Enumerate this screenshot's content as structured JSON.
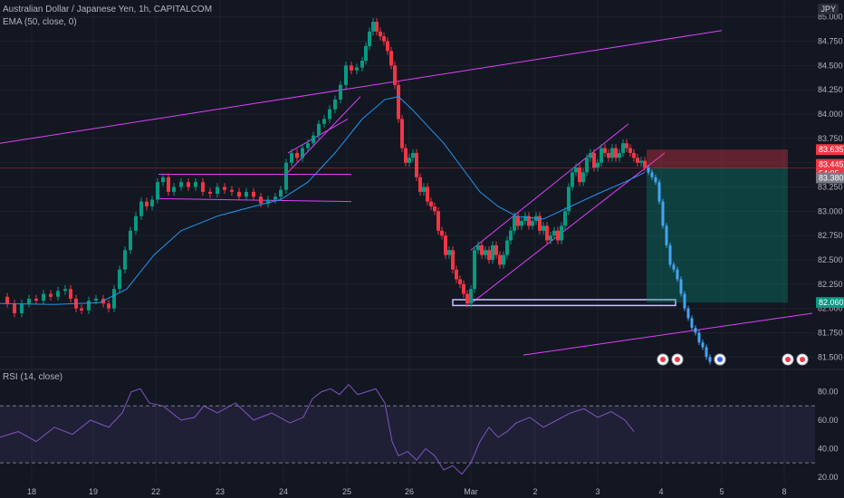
{
  "header": {
    "symbol_line": "Australian Dollar / Japanese Yen, 1h, CAPITALCOM",
    "ema_label": "EMA (50, close, 0)",
    "currency": "JPY"
  },
  "rsi": {
    "label": "RSI (14, close)"
  },
  "chart_data": {
    "type": "candlestick",
    "y_axis": {
      "ticks": [
        "85.000",
        "84.750",
        "84.500",
        "84.250",
        "84.000",
        "83.750",
        "83.500",
        "83.250",
        "83.000",
        "82.750",
        "82.500",
        "82.250",
        "82.000",
        "81.750",
        "81.500"
      ],
      "range": [
        81.4,
        85.1
      ]
    },
    "x_axis": {
      "ticks": [
        "18",
        "19",
        "22",
        "23",
        "24",
        "25",
        "26",
        "Mar",
        "2",
        "3",
        "4",
        "5",
        "8"
      ]
    },
    "price_markers": [
      {
        "label": "83.635",
        "color": "#f23645"
      },
      {
        "label": "83.445",
        "color": "#f23645"
      },
      {
        "label": "54:05",
        "color": "#f23645"
      },
      {
        "label": "83.380",
        "color": "#787b86"
      },
      {
        "label": "82.060",
        "color": "#089981"
      }
    ],
    "rsi_axis": {
      "ticks": [
        "80.00",
        "60.00",
        "40.00",
        "20.00"
      ],
      "range": [
        18,
        88
      ],
      "bands": [
        70,
        30
      ]
    },
    "price_path": [
      [
        0,
        82.12
      ],
      [
        8,
        82.05
      ],
      [
        16,
        81.95
      ],
      [
        24,
        82.05
      ],
      [
        32,
        82.1
      ],
      [
        40,
        82.08
      ],
      [
        48,
        82.15
      ],
      [
        56,
        82.12
      ],
      [
        64,
        82.18
      ],
      [
        72,
        82.2
      ],
      [
        78,
        82.1
      ],
      [
        84,
        82.0
      ],
      [
        90,
        81.98
      ],
      [
        98,
        82.08
      ],
      [
        106,
        82.1
      ],
      [
        114,
        82.05
      ],
      [
        120,
        82.0
      ],
      [
        126,
        82.2
      ],
      [
        132,
        82.4
      ],
      [
        138,
        82.6
      ],
      [
        144,
        82.8
      ],
      [
        150,
        82.95
      ],
      [
        156,
        83.1
      ],
      [
        162,
        83.05
      ],
      [
        168,
        83.12
      ],
      [
        174,
        83.3
      ],
      [
        180,
        83.35
      ],
      [
        186,
        83.2
      ],
      [
        192,
        83.25
      ],
      [
        200,
        83.3
      ],
      [
        208,
        83.25
      ],
      [
        216,
        83.3
      ],
      [
        224,
        83.2
      ],
      [
        232,
        83.18
      ],
      [
        240,
        83.25
      ],
      [
        248,
        83.22
      ],
      [
        256,
        83.2
      ],
      [
        264,
        83.15
      ],
      [
        272,
        83.2
      ],
      [
        280,
        83.15
      ],
      [
        288,
        83.08
      ],
      [
        296,
        83.12
      ],
      [
        304,
        83.15
      ],
      [
        310,
        83.22
      ],
      [
        316,
        83.5
      ],
      [
        322,
        83.6
      ],
      [
        328,
        83.55
      ],
      [
        334,
        83.65
      ],
      [
        340,
        83.7
      ],
      [
        346,
        83.78
      ],
      [
        352,
        83.9
      ],
      [
        358,
        83.95
      ],
      [
        364,
        84.05
      ],
      [
        370,
        84.15
      ],
      [
        376,
        84.3
      ],
      [
        382,
        84.5
      ],
      [
        388,
        84.45
      ],
      [
        394,
        84.48
      ],
      [
        400,
        84.55
      ],
      [
        404,
        84.7
      ],
      [
        408,
        84.85
      ],
      [
        412,
        84.95
      ],
      [
        416,
        84.85
      ],
      [
        420,
        84.8
      ],
      [
        424,
        84.75
      ],
      [
        428,
        84.65
      ],
      [
        432,
        84.5
      ],
      [
        436,
        84.3
      ],
      [
        440,
        83.95
      ],
      [
        444,
        83.65
      ],
      [
        448,
        83.5
      ],
      [
        452,
        83.55
      ],
      [
        456,
        83.6
      ],
      [
        460,
        83.35
      ],
      [
        464,
        83.2
      ],
      [
        468,
        83.25
      ],
      [
        472,
        83.1
      ],
      [
        476,
        83.05
      ],
      [
        480,
        83.0
      ],
      [
        484,
        82.8
      ],
      [
        488,
        82.75
      ],
      [
        492,
        82.55
      ],
      [
        496,
        82.6
      ],
      [
        500,
        82.4
      ],
      [
        504,
        82.3
      ],
      [
        508,
        82.25
      ],
      [
        512,
        82.15
      ],
      [
        516,
        82.05
      ],
      [
        520,
        82.2
      ],
      [
        524,
        82.6
      ],
      [
        528,
        82.65
      ],
      [
        532,
        82.55
      ],
      [
        536,
        82.6
      ],
      [
        540,
        82.5
      ],
      [
        544,
        82.65
      ],
      [
        548,
        82.55
      ],
      [
        552,
        82.45
      ],
      [
        556,
        82.55
      ],
      [
        560,
        82.7
      ],
      [
        564,
        82.8
      ],
      [
        568,
        82.95
      ],
      [
        572,
        82.85
      ],
      [
        576,
        82.9
      ],
      [
        580,
        82.95
      ],
      [
        584,
        82.85
      ],
      [
        588,
        82.9
      ],
      [
        592,
        82.95
      ],
      [
        596,
        82.8
      ],
      [
        600,
        82.85
      ],
      [
        604,
        82.7
      ],
      [
        608,
        82.75
      ],
      [
        612,
        82.8
      ],
      [
        616,
        82.7
      ],
      [
        620,
        82.85
      ],
      [
        624,
        83.0
      ],
      [
        628,
        83.25
      ],
      [
        632,
        83.4
      ],
      [
        636,
        83.45
      ],
      [
        640,
        83.3
      ],
      [
        644,
        83.4
      ],
      [
        648,
        83.55
      ],
      [
        652,
        83.6
      ],
      [
        656,
        83.45
      ],
      [
        660,
        83.5
      ],
      [
        664,
        83.65
      ],
      [
        668,
        83.6
      ],
      [
        672,
        83.55
      ],
      [
        676,
        83.65
      ],
      [
        680,
        83.55
      ],
      [
        684,
        83.6
      ],
      [
        688,
        83.7
      ],
      [
        692,
        83.65
      ],
      [
        696,
        83.6
      ],
      [
        700,
        83.55
      ],
      [
        704,
        83.5
      ],
      [
        708,
        83.52
      ],
      [
        712,
        83.45
      ]
    ],
    "projection_path": [
      [
        712,
        83.45
      ],
      [
        716,
        83.4
      ],
      [
        720,
        83.35
      ],
      [
        724,
        83.3
      ],
      [
        728,
        83.1
      ],
      [
        732,
        82.85
      ],
      [
        736,
        82.65
      ],
      [
        740,
        82.45
      ],
      [
        744,
        82.4
      ],
      [
        748,
        82.3
      ],
      [
        752,
        82.15
      ],
      [
        756,
        82.0
      ],
      [
        760,
        81.9
      ],
      [
        764,
        81.8
      ],
      [
        768,
        81.75
      ],
      [
        772,
        81.65
      ],
      [
        776,
        81.6
      ],
      [
        780,
        81.5
      ],
      [
        784,
        81.45
      ]
    ],
    "ema_path": [
      [
        0,
        82.05
      ],
      [
        60,
        82.04
      ],
      [
        110,
        82.06
      ],
      [
        140,
        82.2
      ],
      [
        170,
        82.55
      ],
      [
        200,
        82.8
      ],
      [
        240,
        82.95
      ],
      [
        280,
        83.05
      ],
      [
        310,
        83.12
      ],
      [
        340,
        83.3
      ],
      [
        370,
        83.6
      ],
      [
        400,
        83.95
      ],
      [
        425,
        84.15
      ],
      [
        440,
        84.18
      ],
      [
        455,
        84.05
      ],
      [
        470,
        83.9
      ],
      [
        490,
        83.7
      ],
      [
        510,
        83.45
      ],
      [
        530,
        83.2
      ],
      [
        550,
        83.05
      ],
      [
        570,
        82.95
      ],
      [
        600,
        82.92
      ],
      [
        630,
        83.05
      ],
      [
        660,
        83.18
      ],
      [
        690,
        83.3
      ],
      [
        712,
        83.4
      ]
    ],
    "rsi_path": [
      [
        0,
        48
      ],
      [
        20,
        52
      ],
      [
        40,
        45
      ],
      [
        60,
        55
      ],
      [
        80,
        50
      ],
      [
        100,
        60
      ],
      [
        120,
        55
      ],
      [
        135,
        65
      ],
      [
        145,
        80
      ],
      [
        155,
        82
      ],
      [
        165,
        72
      ],
      [
        180,
        70
      ],
      [
        200,
        60
      ],
      [
        215,
        62
      ],
      [
        225,
        70
      ],
      [
        240,
        65
      ],
      [
        260,
        72
      ],
      [
        280,
        60
      ],
      [
        300,
        65
      ],
      [
        320,
        58
      ],
      [
        335,
        62
      ],
      [
        345,
        75
      ],
      [
        355,
        80
      ],
      [
        365,
        82
      ],
      [
        375,
        78
      ],
      [
        385,
        85
      ],
      [
        395,
        78
      ],
      [
        405,
        80
      ],
      [
        415,
        82
      ],
      [
        425,
        72
      ],
      [
        433,
        45
      ],
      [
        440,
        35
      ],
      [
        450,
        38
      ],
      [
        460,
        32
      ],
      [
        470,
        40
      ],
      [
        480,
        35
      ],
      [
        490,
        25
      ],
      [
        500,
        28
      ],
      [
        510,
        22
      ],
      [
        520,
        30
      ],
      [
        530,
        45
      ],
      [
        540,
        55
      ],
      [
        550,
        48
      ],
      [
        560,
        52
      ],
      [
        570,
        58
      ],
      [
        585,
        62
      ],
      [
        600,
        55
      ],
      [
        615,
        60
      ],
      [
        630,
        65
      ],
      [
        645,
        68
      ],
      [
        660,
        62
      ],
      [
        675,
        66
      ],
      [
        690,
        60
      ],
      [
        700,
        52
      ]
    ]
  }
}
